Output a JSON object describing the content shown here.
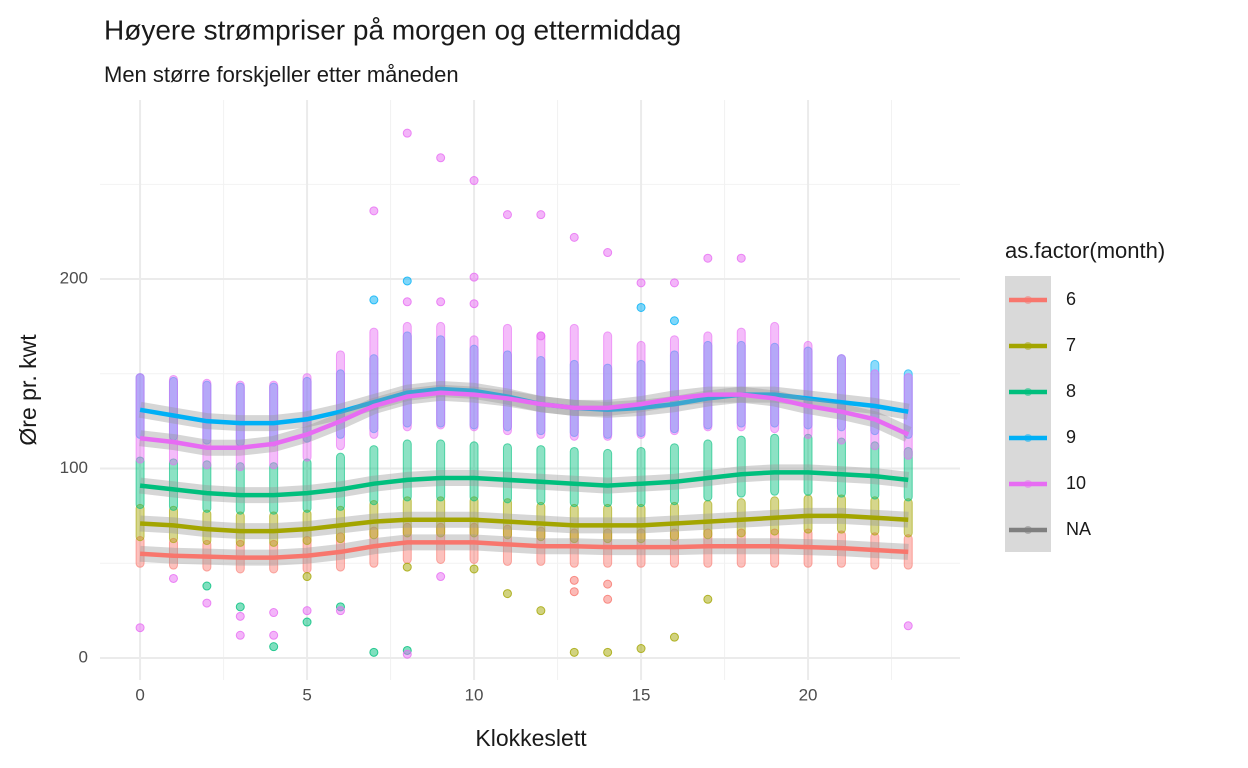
{
  "chart_data": {
    "type": "scatter",
    "title": "Høyere strømpriser på morgen og ettermiddag",
    "subtitle": "Men større forskjeller etter måneden",
    "x_label": "Klokkeslett",
    "y_label": "Øre pr. kwt",
    "legend_title": "as.factor(month)",
    "x": [
      0,
      1,
      2,
      3,
      4,
      5,
      6,
      7,
      8,
      9,
      10,
      11,
      12,
      13,
      14,
      15,
      16,
      17,
      18,
      19,
      20,
      21,
      22,
      23
    ],
    "xlim": [
      -1.2,
      24.55
    ],
    "ylim": [
      -11.6,
      294.5
    ],
    "xticks": [
      0,
      5,
      10,
      15,
      20
    ],
    "yticks": [
      0,
      100,
      200
    ],
    "xminor": [
      2.5,
      7.5,
      12.5,
      17.5,
      22.5
    ],
    "yminor": [
      50,
      150,
      250
    ],
    "grid": true,
    "series": [
      {
        "name": "6",
        "color": "#F8766D",
        "values": [
          55,
          54,
          53.5,
          53,
          53,
          54,
          56,
          59,
          61,
          61,
          61,
          60,
          59,
          59,
          58.5,
          58.5,
          58.5,
          59,
          59,
          59,
          58.5,
          58,
          57,
          56
        ],
        "low": [
          50,
          49,
          48,
          47,
          47,
          47,
          48,
          50,
          52,
          52,
          52,
          51,
          51,
          50,
          50,
          50,
          50,
          50,
          50,
          50,
          50,
          50,
          49,
          49
        ],
        "high": [
          62,
          61,
          60,
          60,
          60,
          62,
          64,
          67,
          69,
          69,
          69,
          68,
          67,
          66,
          66,
          66,
          66,
          66,
          66,
          66,
          66,
          65,
          64,
          63
        ],
        "points_x": [
          13,
          13,
          14,
          14
        ],
        "points_y": [
          35,
          41,
          31,
          39
        ]
      },
      {
        "name": "7",
        "color": "#A3A500",
        "values": [
          71,
          70,
          68,
          67,
          67,
          68,
          70,
          72,
          73,
          73,
          73,
          72,
          71,
          70,
          70,
          70,
          71,
          72,
          73,
          74,
          75,
          75,
          74,
          73
        ],
        "low": [
          64,
          63,
          62,
          61,
          61,
          62,
          63,
          65,
          66,
          66,
          66,
          65,
          64,
          63,
          63,
          63,
          64,
          65,
          66,
          67,
          68,
          68,
          67,
          66
        ],
        "high": [
          79,
          78,
          76,
          75,
          75,
          76,
          78,
          81,
          83,
          83,
          83,
          82,
          80,
          79,
          79,
          79,
          80,
          81,
          82,
          83,
          84,
          84,
          83,
          82
        ],
        "points_x": [
          5,
          8,
          10,
          11,
          12,
          13,
          14,
          15,
          16,
          17
        ],
        "points_y": [
          43,
          48,
          47,
          34,
          25,
          3,
          3,
          5,
          11,
          31
        ]
      },
      {
        "name": "8",
        "color": "#00BF7D",
        "values": [
          91,
          89,
          87,
          86,
          86,
          87,
          89,
          92,
          94,
          95,
          95,
          94,
          93,
          92,
          91,
          92,
          93,
          95,
          97,
          98,
          98,
          97,
          96,
          94
        ],
        "low": [
          81,
          80,
          79,
          78,
          78,
          79,
          80,
          83,
          85,
          85,
          85,
          84,
          83,
          82,
          82,
          82,
          83,
          85,
          87,
          88,
          88,
          87,
          86,
          85
        ],
        "high": [
          104,
          103,
          102,
          101,
          101,
          103,
          106,
          110,
          113,
          113,
          112,
          111,
          110,
          109,
          108,
          109,
          111,
          113,
          115,
          116,
          116,
          114,
          112,
          109
        ],
        "points_x": [
          2,
          3,
          4,
          5,
          6,
          7,
          8
        ],
        "points_y": [
          38,
          27,
          6,
          19,
          27,
          3,
          4
        ]
      },
      {
        "name": "9",
        "color": "#00B0F6",
        "values": [
          131,
          128,
          125,
          124,
          124,
          126,
          130,
          135,
          140,
          142,
          141,
          138,
          134,
          132,
          131,
          132,
          134,
          137,
          139,
          139,
          137,
          135,
          133,
          130
        ],
        "low": [
          118,
          117,
          115,
          114,
          114,
          116,
          118,
          121,
          124,
          124,
          123,
          122,
          120,
          119,
          118,
          119,
          121,
          123,
          124,
          124,
          123,
          122,
          120,
          118
        ],
        "high": [
          148,
          146,
          144,
          143,
          143,
          146,
          150,
          158,
          170,
          168,
          163,
          160,
          157,
          155,
          153,
          155,
          160,
          165,
          165,
          164,
          162,
          158,
          155,
          150
        ],
        "points_x": [
          7,
          8,
          15,
          16
        ],
        "points_y": [
          189,
          199,
          185,
          178
        ]
      },
      {
        "name": "10",
        "color": "#E76BF3",
        "values": [
          116,
          114,
          111,
          111,
          113,
          118,
          125,
          133,
          138,
          140,
          139,
          137,
          134,
          132,
          132,
          134,
          137,
          139,
          139,
          137,
          133,
          130,
          126,
          118
        ],
        "low": [
          105,
          104,
          102,
          101,
          102,
          106,
          112,
          118,
          122,
          123,
          122,
          120,
          118,
          117,
          117,
          118,
          120,
          122,
          122,
          121,
          118,
          115,
          112,
          107
        ],
        "high": [
          148,
          147,
          145,
          144,
          144,
          148,
          160,
          172,
          175,
          175,
          168,
          174,
          170,
          174,
          170,
          165,
          168,
          170,
          172,
          175,
          165,
          158,
          150,
          148
        ],
        "points_x": [
          0,
          1,
          2,
          3,
          3,
          4,
          4,
          5,
          6,
          7,
          8,
          8,
          9,
          9,
          10,
          10,
          11,
          12,
          12,
          13,
          14,
          15,
          16,
          17,
          18,
          23,
          8,
          9,
          10
        ],
        "points_y": [
          16,
          42,
          29,
          12,
          22,
          12,
          24,
          25,
          25,
          236,
          277,
          2,
          264,
          43,
          252,
          201,
          234,
          234,
          170,
          222,
          214,
          198,
          198,
          211,
          211,
          17,
          188,
          188,
          187
        ]
      },
      {
        "name": "NA",
        "color": "#7F7F7F"
      }
    ]
  }
}
